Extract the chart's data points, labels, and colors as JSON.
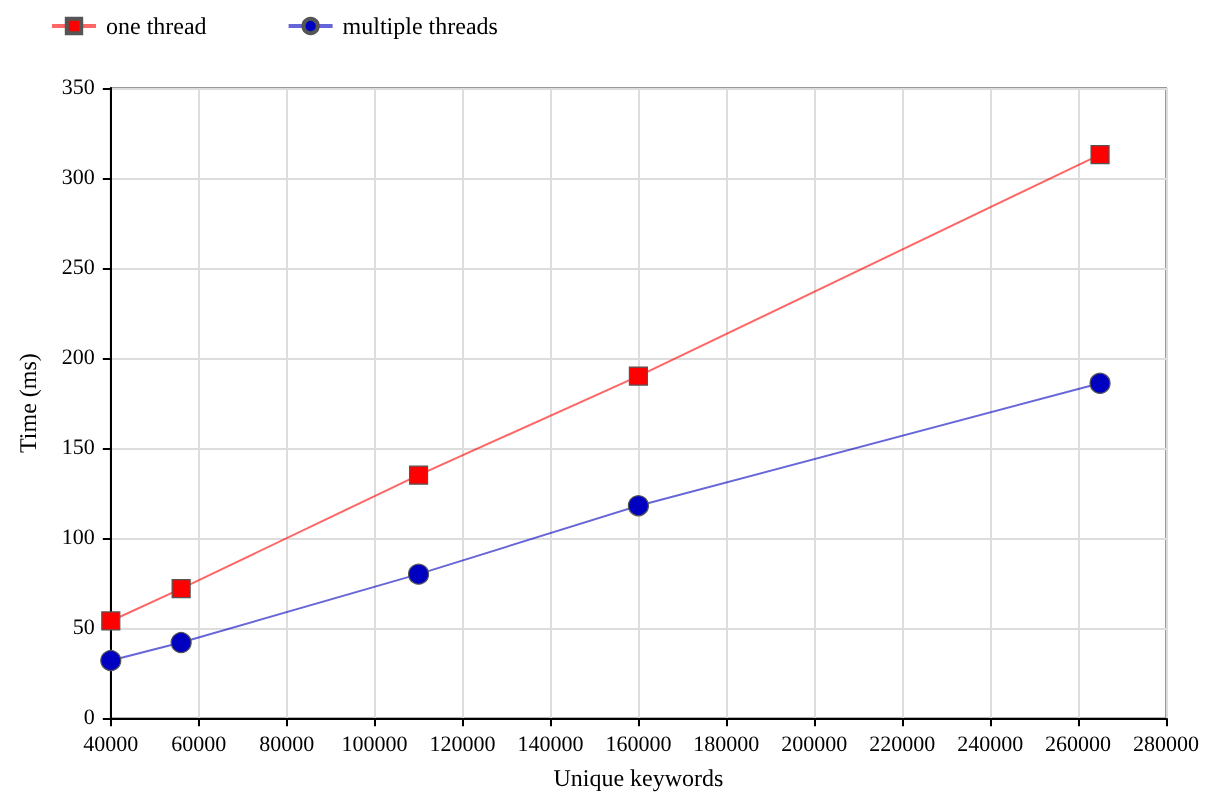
{
  "chart_data": {
    "type": "line",
    "xlabel": "Unique keywords",
    "ylabel": "Time (ms)",
    "x": [
      40000,
      56000,
      110000,
      160000,
      265000
    ],
    "series": [
      {
        "name": "one thread",
        "color": "#ff0000",
        "marker": "square",
        "values": [
          54,
          72,
          135,
          190,
          313
        ]
      },
      {
        "name": "multiple threads",
        "color": "#0000c0",
        "marker": "circle",
        "values": [
          32,
          42,
          80,
          118,
          186
        ]
      }
    ],
    "xlim": [
      40000,
      280000
    ],
    "xticks": [
      40000,
      60000,
      80000,
      100000,
      120000,
      140000,
      160000,
      180000,
      200000,
      220000,
      240000,
      260000,
      280000
    ],
    "ylim": [
      0,
      350
    ],
    "yticks": [
      0,
      50,
      100,
      150,
      200,
      250,
      300,
      350
    ],
    "grid": true,
    "legend": "top left",
    "line_style": "solid"
  }
}
